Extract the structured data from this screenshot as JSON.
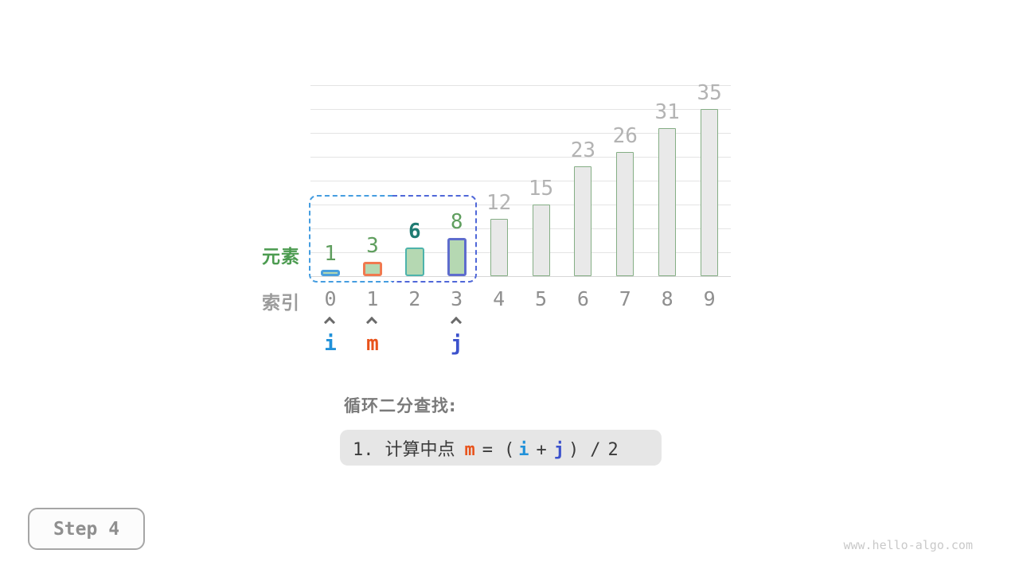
{
  "chart_data": {
    "type": "bar",
    "title": "",
    "categories": [
      "0",
      "1",
      "2",
      "3",
      "4",
      "5",
      "6",
      "7",
      "8",
      "9"
    ],
    "values": [
      1,
      3,
      6,
      8,
      12,
      15,
      23,
      26,
      31,
      35
    ],
    "ylim": [
      0,
      40
    ],
    "grid_step": 5,
    "grid": true,
    "bar_styles": [
      {
        "role": "pointer-i-highlight",
        "fill": "#b5d8b2",
        "border": "#4aa0dc",
        "border_w": 3,
        "value_color": "#5f9e5e",
        "value_bold": false
      },
      {
        "role": "pointer-m-highlight",
        "fill": "#b5d8b2",
        "border": "#f0794f",
        "border_w": 3,
        "value_color": "#5f9e5e",
        "value_bold": false
      },
      {
        "role": "in-range",
        "fill": "#b5d8b2",
        "border": "#4db3ab",
        "border_w": 2,
        "value_color": "#1f7b72",
        "value_bold": true
      },
      {
        "role": "pointer-j-highlight",
        "fill": "#b5d8b2",
        "border": "#5e6ccd",
        "border_w": 3,
        "value_color": "#5f9e5e",
        "value_bold": false
      },
      {
        "role": "excluded",
        "fill": "#e9e9e9",
        "border": "#85ae85",
        "border_w": 1,
        "value_color": "#b3b3b3",
        "value_bold": false
      },
      {
        "role": "excluded",
        "fill": "#e9e9e9",
        "border": "#85ae85",
        "border_w": 1,
        "value_color": "#b3b3b3",
        "value_bold": false
      },
      {
        "role": "excluded",
        "fill": "#e9e9e9",
        "border": "#85ae85",
        "border_w": 1,
        "value_color": "#b3b3b3",
        "value_bold": false
      },
      {
        "role": "excluded",
        "fill": "#e9e9e9",
        "border": "#85ae85",
        "border_w": 1,
        "value_color": "#b3b3b3",
        "value_bold": false
      },
      {
        "role": "excluded",
        "fill": "#e9e9e9",
        "border": "#85ae85",
        "border_w": 1,
        "value_color": "#b3b3b3",
        "value_bold": false
      },
      {
        "role": "excluded",
        "fill": "#e9e9e9",
        "border": "#85ae85",
        "border_w": 1,
        "value_color": "#b3b3b3",
        "value_bold": false
      }
    ]
  },
  "labels": {
    "element": "元素",
    "index": "索引"
  },
  "search_range": {
    "from": 0,
    "to": 3,
    "color_left": "#459de0",
    "color_right": "#4f67d8"
  },
  "pointers": {
    "items": [
      {
        "label": "i",
        "index": 0,
        "color": "#2191d9"
      },
      {
        "label": "m",
        "index": 1,
        "color": "#e8521a"
      },
      {
        "label": "j",
        "index": 3,
        "color": "#3c52cc"
      }
    ]
  },
  "caption": {
    "title": "循环二分查找:",
    "formula_parts": [
      {
        "text": "1.",
        "kind": "num"
      },
      {
        "text": "计算中点",
        "kind": "cjk"
      },
      {
        "text": "m",
        "kind": "var",
        "color": "#e8521a"
      },
      {
        "text": "=",
        "kind": "op"
      },
      {
        "text": "(",
        "kind": "paren"
      },
      {
        "text": "i",
        "kind": "var",
        "color": "#2191d9"
      },
      {
        "text": "+",
        "kind": "op"
      },
      {
        "text": "j",
        "kind": "var",
        "color": "#3c52cc"
      },
      {
        "text": ")",
        "kind": "paren"
      },
      {
        "text": "/",
        "kind": "op"
      },
      {
        "text": "2",
        "kind": "num"
      }
    ]
  },
  "step_badge": {
    "label": "Step 4"
  },
  "watermark": "www.hello-algo.com",
  "colors": {
    "gridline": "#e4e4e4",
    "baseline": "#d7d7d7",
    "index_text": "#8f8f8f",
    "element_label": "#4c9b50",
    "index_label": "#9b9b9b",
    "caret": "#6a6a6a",
    "caption_title": "#7a7a7a",
    "formula_bg": "#e6e6e6",
    "formula_text": "#3b3b3b",
    "badge_border": "#a6a6a6",
    "badge_text": "#8f8f8f",
    "watermark_text": "#c9c9c9"
  }
}
